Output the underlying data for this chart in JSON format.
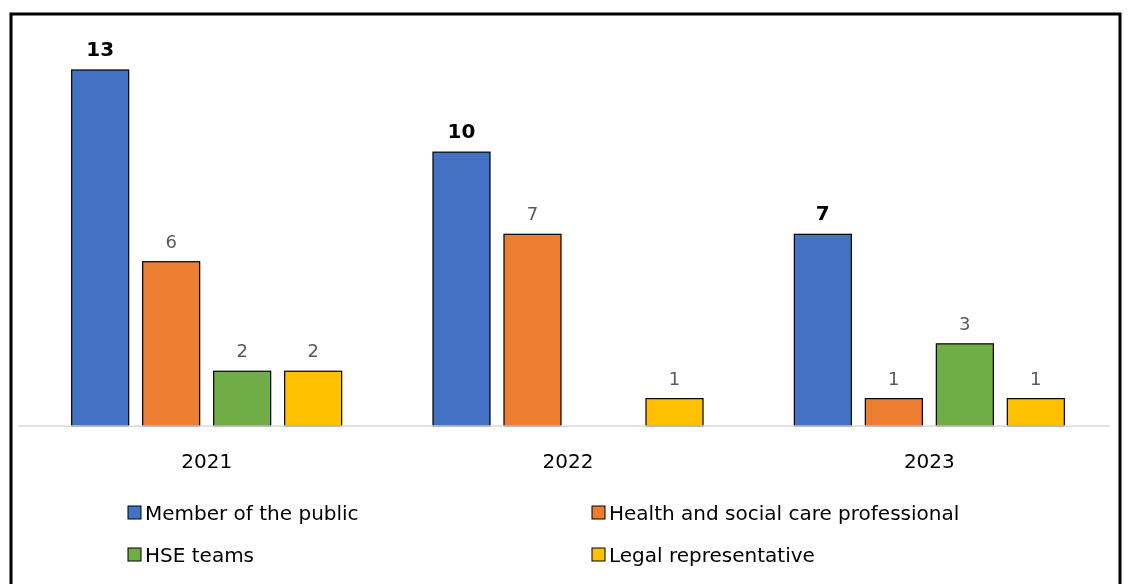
{
  "chart_data": {
    "type": "bar",
    "categories": [
      "2021",
      "2022",
      "2023"
    ],
    "series": [
      {
        "name": "Member of the public",
        "color": "#4472c4",
        "values": [
          13,
          10,
          7
        ]
      },
      {
        "name": "Health and social care professional",
        "color": "#ed7d31",
        "values": [
          6,
          7,
          1
        ]
      },
      {
        "name": "HSE teams",
        "color": "#70ad47",
        "values": [
          2,
          null,
          3
        ]
      },
      {
        "name": "Legal representative",
        "color": "#ffc000",
        "values": [
          2,
          1,
          1
        ]
      }
    ],
    "data_labels": true,
    "legend": "bottom",
    "grid": false
  }
}
